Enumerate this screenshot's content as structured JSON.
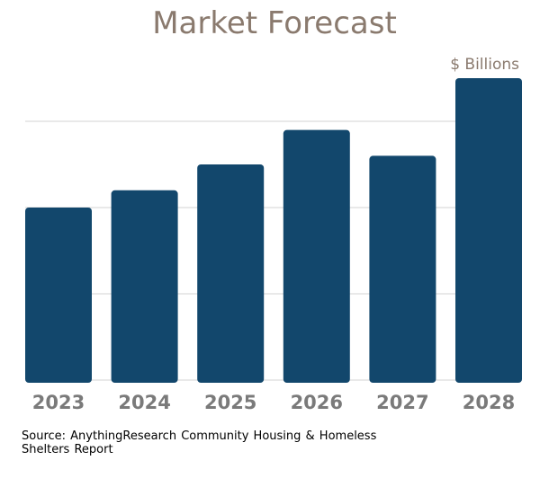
{
  "title": "Market Forecast",
  "unit_label": "$ Billions",
  "source_text": "Source: AnythingResearch Community Housing & Homeless Shelters Report",
  "colors": {
    "bar": "#12476c",
    "title": "#8a7a6e",
    "tick": "#7a7a7a",
    "grid": "#d3d3d3"
  },
  "chart_data": {
    "type": "bar",
    "categories": [
      "2023",
      "2024",
      "2025",
      "2026",
      "2027",
      "2028"
    ],
    "values": [
      2.0,
      2.2,
      2.5,
      2.9,
      2.6,
      3.5
    ],
    "title": "Market Forecast",
    "ylabel": "$ Billions",
    "ylim": [
      0,
      3.5
    ],
    "grid": true,
    "y_tick_labels_shown": false
  }
}
